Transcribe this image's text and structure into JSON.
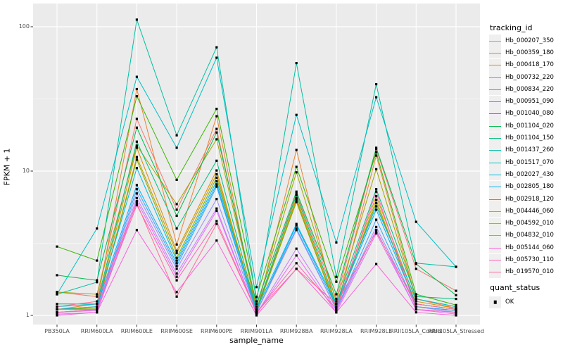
{
  "chart_data": {
    "type": "line",
    "title": "",
    "xlabel": "sample_name",
    "ylabel": "FPKM + 1",
    "y_scale": "log10",
    "y_ticks": [
      1,
      10,
      100
    ],
    "y_minor_gridlines": [
      3.1623,
      31.623
    ],
    "ylim": [
      0.86,
      145
    ],
    "grid": true,
    "legend_position": "right",
    "legend_title": "tracking_id",
    "point_legend": {
      "title": "quant_status",
      "label": "OK",
      "marker": "black-square"
    },
    "style": {
      "panel_bg": "#ebebeb",
      "grid_color": "#ffffff",
      "tick_text_color": "#4d4d4d",
      "axis_title_color": "#000000",
      "point_color": "#000000",
      "legend_key_bg": "#efefef"
    },
    "x_categories": [
      "PB350LA",
      "RRIM600LA",
      "RRIM600LE",
      "RRIM600SE",
      "RRIM600PE",
      "RRIM901LA",
      "RRIM928BA",
      "RRIM928LA",
      "RRIM928LE",
      "RRII105LA_Control",
      "RRII105LA_Stressed"
    ],
    "series": [
      {
        "name": "Hb_000207_350",
        "color": "#F8766D",
        "values": [
          1.45,
          1.35,
          23,
          5.4,
          19.6,
          1.1,
          7.0,
          1.3,
          14.2,
          2.1,
          1.48
        ]
      },
      {
        "name": "Hb_000359_180",
        "color": "#EA8331",
        "values": [
          1.1,
          1.2,
          37,
          3.1,
          24,
          1.05,
          14,
          1.1,
          12.8,
          1.3,
          1.12
        ]
      },
      {
        "name": "Hb_000418_170",
        "color": "#D89000",
        "values": [
          1.1,
          1.15,
          14.5,
          2.8,
          10.1,
          1.05,
          6.5,
          1.15,
          6.7,
          1.25,
          1.12
        ]
      },
      {
        "name": "Hb_000732_220",
        "color": "#C09B00",
        "values": [
          1.05,
          1.1,
          12.5,
          2.7,
          9.5,
          1.1,
          6.3,
          1.1,
          6.3,
          1.15,
          1.08
        ]
      },
      {
        "name": "Hb_000834_220",
        "color": "#A3A500",
        "values": [
          1.45,
          1.4,
          15,
          5.9,
          16.6,
          1.15,
          9.8,
          1.25,
          10.3,
          1.3,
          1.15
        ]
      },
      {
        "name": "Hb_000951_090",
        "color": "#7CAE00",
        "values": [
          1.1,
          1.12,
          12,
          2.5,
          9.0,
          1.08,
          6.1,
          1.12,
          6.0,
          1.2,
          1.1
        ]
      },
      {
        "name": "Hb_001040_080",
        "color": "#39B600",
        "values": [
          3.0,
          2.4,
          33,
          8.7,
          27,
          1.34,
          10.7,
          1.71,
          13.5,
          1.4,
          1.18
        ]
      },
      {
        "name": "Hb_001104_020",
        "color": "#00BB4E",
        "values": [
          1.9,
          1.75,
          20,
          4.9,
          18.5,
          1.2,
          7.2,
          1.4,
          14.5,
          2.27,
          1.38
        ]
      },
      {
        "name": "Hb_001104_150",
        "color": "#00BF7D",
        "values": [
          1.2,
          1.2,
          16,
          4.0,
          11.8,
          1.1,
          6.8,
          1.2,
          7.5,
          1.35,
          1.3
        ]
      },
      {
        "name": "Hb_001437_260",
        "color": "#00C1A3",
        "values": [
          1.4,
          1.7,
          112,
          17.7,
          72,
          1.25,
          56,
          1.85,
          40,
          2.3,
          2.17
        ]
      },
      {
        "name": "Hb_001517_070",
        "color": "#00BFC4",
        "values": [
          1.4,
          4.0,
          45,
          14.5,
          61,
          1.57,
          24.5,
          3.2,
          32.5,
          4.45,
          2.17
        ]
      },
      {
        "name": "Hb_002027_430",
        "color": "#00BAE0",
        "values": [
          1.15,
          1.2,
          10.5,
          2.4,
          8.5,
          1.1,
          4.3,
          1.2,
          5.7,
          1.3,
          1.15
        ]
      },
      {
        "name": "Hb_002805_180",
        "color": "#00B0F6",
        "values": [
          1.1,
          1.15,
          8.0,
          2.3,
          8.1,
          1.05,
          4.2,
          1.15,
          5.4,
          1.2,
          1.1
        ]
      },
      {
        "name": "Hb_002918_120",
        "color": "#35A2FF",
        "values": [
          1.05,
          1.1,
          7.5,
          2.2,
          7.8,
          1.05,
          4.0,
          1.1,
          4.6,
          1.15,
          1.08
        ]
      },
      {
        "name": "Hb_004446_060",
        "color": "#9590FF",
        "values": [
          1.1,
          1.1,
          7.0,
          2.1,
          6.4,
          1.05,
          3.9,
          1.1,
          4.1,
          1.15,
          1.05
        ]
      },
      {
        "name": "Hb_004592_010",
        "color": "#C77CFF",
        "values": [
          1.05,
          1.08,
          6.5,
          1.95,
          5.5,
          1.02,
          2.9,
          1.08,
          3.9,
          1.1,
          1.05
        ]
      },
      {
        "name": "Hb_004832_010",
        "color": "#E76BF3",
        "values": [
          1.02,
          1.05,
          6.2,
          1.85,
          5.3,
          1.02,
          2.6,
          1.05,
          3.7,
          1.1,
          1.02
        ]
      },
      {
        "name": "Hb_005144_060",
        "color": "#FA62DB",
        "values": [
          1.0,
          1.05,
          3.9,
          1.45,
          3.3,
          1.0,
          2.1,
          1.05,
          2.27,
          1.05,
          1.0
        ]
      },
      {
        "name": "Hb_005730_110",
        "color": "#FF62BC",
        "values": [
          1.05,
          1.1,
          5.8,
          1.75,
          4.5,
          1.05,
          2.3,
          1.1,
          7.2,
          1.1,
          1.05
        ]
      },
      {
        "name": "Hb_019570_010",
        "color": "#FF6A98",
        "values": [
          1.15,
          1.25,
          6.0,
          1.35,
          4.3,
          1.05,
          2.1,
          1.2,
          3.8,
          1.2,
          1.1
        ]
      }
    ]
  }
}
